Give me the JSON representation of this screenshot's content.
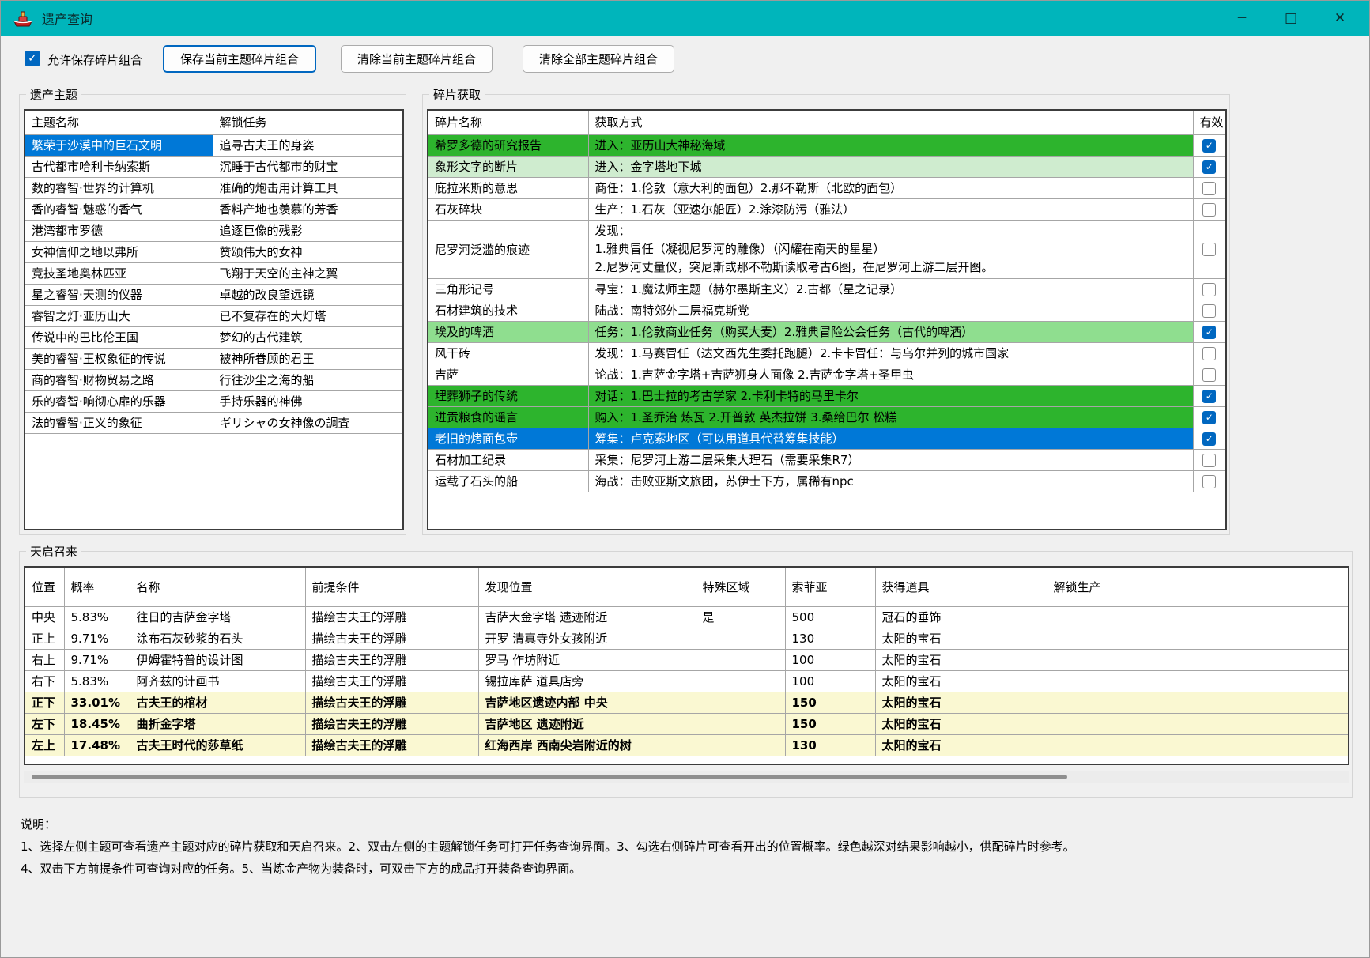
{
  "colors": {
    "titlebar_teal": "#00b5bb",
    "selection_blue": "#0078d7",
    "accent_blue": "#0067c0",
    "deep_green": "#2db42d",
    "medium_green": "#8fde8f",
    "light_green": "#cfeccf",
    "highlight_yellow": "#faf8d2"
  },
  "titlebar": {
    "title": "遗产查询",
    "minimize_glyph": "─",
    "maximize_glyph": "□",
    "close_glyph": "✕"
  },
  "toolbar": {
    "allow_save_label": "允许保存碎片组合",
    "allow_save_checked": true,
    "save_button": "保存当前主题碎片组合",
    "clear_current_button": "清除当前主题碎片组合",
    "clear_all_button": "清除全部主题碎片组合"
  },
  "themes": {
    "legend": "遗产主题",
    "headers": [
      "主题名称",
      "解锁任务"
    ],
    "rows": [
      {
        "name": "繁荣于沙漠中的巨石文明",
        "task": "追寻古夫王的身姿",
        "selected": true
      },
      {
        "name": "古代都市哈利卡纳索斯",
        "task": "沉睡于古代都市的财宝",
        "selected": false
      },
      {
        "name": "数的睿智·世界的计算机",
        "task": "准确的炮击用计算工具",
        "selected": false
      },
      {
        "name": "香的睿智·魅惑的香气",
        "task": "香料产地也羡慕的芳香",
        "selected": false
      },
      {
        "name": "港湾都市罗德",
        "task": "追逐巨像的残影",
        "selected": false
      },
      {
        "name": "女神信仰之地以弗所",
        "task": "赞颂伟大的女神",
        "selected": false
      },
      {
        "name": "竞技圣地奥林匹亚",
        "task": "飞翔于天空的主神之翼",
        "selected": false
      },
      {
        "name": "星之睿智·天测的仪器",
        "task": "卓越的改良望远镜",
        "selected": false
      },
      {
        "name": "睿智之灯·亚历山大",
        "task": "已不复存在的大灯塔",
        "selected": false
      },
      {
        "name": "传说中的巴比伦王国",
        "task": "梦幻的古代建筑",
        "selected": false
      },
      {
        "name": "美的睿智·王权象征的传说",
        "task": "被神所眷顾的君王",
        "selected": false
      },
      {
        "name": "商的睿智·财物贸易之路",
        "task": "行往沙尘之海的船",
        "selected": false
      },
      {
        "name": "乐的睿智·响彻心扉的乐器",
        "task": "手持乐器的神佛",
        "selected": false
      },
      {
        "name": "法的睿智·正义的象征",
        "task": "ギリシャの女神像の調査",
        "selected": false
      }
    ]
  },
  "fragments": {
    "legend": "碎片获取",
    "headers": [
      "碎片名称",
      "获取方式",
      "有效"
    ],
    "rows": [
      {
        "name": "希罗多德的研究报告",
        "method": "进入：亚历山大神秘海域",
        "tone": "deep",
        "checked": true
      },
      {
        "name": "象形文字的断片",
        "method": "进入：金字塔地下城",
        "tone": "light",
        "checked": true
      },
      {
        "name": "庇拉米斯的意思",
        "method": "商任：1.伦敦（意大利的面包）2.那不勒斯（北欧的面包）",
        "tone": "none",
        "checked": false
      },
      {
        "name": "石灰碎块",
        "method": "生产：1.石灰（亚速尔船匠）2.涂漆防污（雅法）",
        "tone": "none",
        "checked": false
      },
      {
        "name": "尼罗河泛滥的痕迹",
        "method": [
          "发现：",
          "1.雅典冒任（凝视尼罗河的雕像）（闪耀在南天的星星）",
          "2.尼罗河丈量仪，突尼斯或那不勒斯读取考古6图，在尼罗河上游二层开图。"
        ],
        "tone": "none",
        "checked": false
      },
      {
        "name": "三角形记号",
        "method": "寻宝：1.魔法师主题（赫尔墨斯主义）2.古都（星之记录）",
        "tone": "none",
        "checked": false
      },
      {
        "name": "石材建筑的技术",
        "method": "陆战：南特郊外二层福克斯党",
        "tone": "none",
        "checked": false
      },
      {
        "name": "埃及的啤酒",
        "method": "任务：1.伦敦商业任务（购买大麦）2.雅典冒险公会任务（古代的啤酒）",
        "tone": "medium",
        "checked": true
      },
      {
        "name": "风干砖",
        "method": "发现：1.马赛冒任（达文西先生委托跑腿）2.卡卡冒任：与乌尔并列的城市国家",
        "tone": "none",
        "checked": false
      },
      {
        "name": "吉萨",
        "method": "论战：1.吉萨金字塔+吉萨狮身人面像 2.吉萨金字塔+圣甲虫",
        "tone": "none",
        "checked": false
      },
      {
        "name": "埋葬狮子的传统",
        "method": "对话：1.巴士拉的考古学家 2.卡利卡特的马里卡尔",
        "tone": "deep",
        "checked": true
      },
      {
        "name": "进贡粮食的谣言",
        "method": "购入：1.圣乔治 炼瓦 2.开普敦 英杰拉饼 3.桑给巴尔 松糕",
        "tone": "deep",
        "checked": true
      },
      {
        "name": "老旧的烤面包壶",
        "method": "筹集：卢克索地区（可以用道具代替筹集技能）",
        "tone": "selected",
        "checked": true
      },
      {
        "name": "石材加工纪录",
        "method": "采集：尼罗河上游二层采集大理石（需要采集R7）",
        "tone": "none",
        "checked": false
      },
      {
        "name": "运载了石头的船",
        "method": "海战：击败亚斯文旅团，苏伊士下方，属稀有npc",
        "tone": "none",
        "checked": false
      }
    ]
  },
  "summon": {
    "legend": "天启召来",
    "headers": [
      "位置",
      "概率",
      "名称",
      "前提条件",
      "发现位置",
      "特殊区域",
      "索菲亚",
      "获得道具",
      "解锁生产"
    ],
    "rows": [
      {
        "pos": "中央",
        "prob": "5.83%",
        "name": "往日的吉萨金字塔",
        "cond": "描绘古夫王的浮雕",
        "loc": "吉萨大金字塔 遗迹附近",
        "special": "是",
        "sofia": "500",
        "item": "冠石的垂饰",
        "unlock": "",
        "highlighted": false
      },
      {
        "pos": "正上",
        "prob": "9.71%",
        "name": "涂布石灰砂浆的石头",
        "cond": "描绘古夫王的浮雕",
        "loc": "开罗 清真寺外女孩附近",
        "special": "",
        "sofia": "130",
        "item": "太阳的宝石",
        "unlock": "",
        "highlighted": false
      },
      {
        "pos": "右上",
        "prob": "9.71%",
        "name": "伊姆霍特普的设计图",
        "cond": "描绘古夫王的浮雕",
        "loc": "罗马 作坊附近",
        "special": "",
        "sofia": "100",
        "item": "太阳的宝石",
        "unlock": "",
        "highlighted": false
      },
      {
        "pos": "右下",
        "prob": "5.83%",
        "name": "阿齐兹的计画书",
        "cond": "描绘古夫王的浮雕",
        "loc": "锡拉库萨 道具店旁",
        "special": "",
        "sofia": "100",
        "item": "太阳的宝石",
        "unlock": "",
        "highlighted": false
      },
      {
        "pos": "正下",
        "prob": "33.01%",
        "name": "古夫王的棺材",
        "cond": "描绘古夫王的浮雕",
        "loc": "吉萨地区遗迹内部 中央",
        "special": "",
        "sofia": "150",
        "item": "太阳的宝石",
        "unlock": "",
        "highlighted": true
      },
      {
        "pos": "左下",
        "prob": "18.45%",
        "name": "曲折金字塔",
        "cond": "描绘古夫王的浮雕",
        "loc": "吉萨地区 遗迹附近",
        "special": "",
        "sofia": "150",
        "item": "太阳的宝石",
        "unlock": "",
        "highlighted": true
      },
      {
        "pos": "左上",
        "prob": "17.48%",
        "name": "古夫王时代的莎草纸",
        "cond": "描绘古夫王的浮雕",
        "loc": "红海西岸 西南尖岩附近的树",
        "special": "",
        "sofia": "130",
        "item": "太阳的宝石",
        "unlock": "",
        "highlighted": true
      }
    ]
  },
  "notes": {
    "title": "说明：",
    "lines": [
      "1、选择左侧主题可查看遗产主题对应的碎片获取和天启召来。2、双击左侧的主题解锁任务可打开任务查询界面。3、勾选右侧碎片可查看开出的位置概率。绿色越深对结果影响越小，供配碎片时参考。",
      "4、双击下方前提条件可查询对应的任务。5、当炼金产物为装备时，可双击下方的成品打开装备查询界面。"
    ]
  }
}
